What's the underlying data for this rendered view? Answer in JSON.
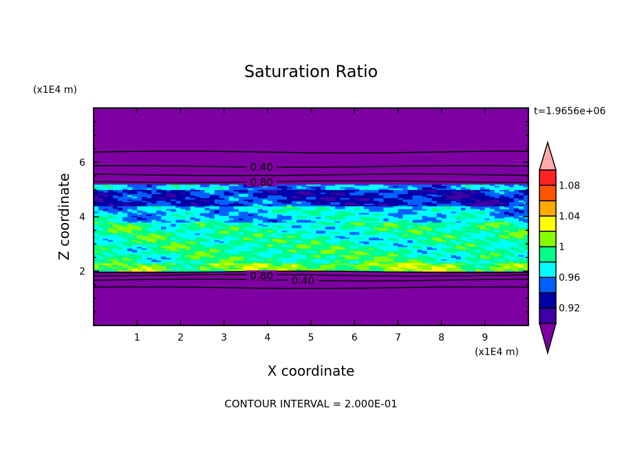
{
  "chart_data": {
    "type": "heatmap",
    "subtype": "filled-contour",
    "title": "Saturation Ratio",
    "xlabel": "X coordinate",
    "ylabel": "Z coordinate",
    "x_units": "(x1E4 m)",
    "y_units": "(x1E4 m)",
    "xlim": [
      0,
      10
    ],
    "ylim": [
      0,
      8
    ],
    "x_ticks": [
      "1",
      "2",
      "3",
      "4",
      "5",
      "6",
      "7",
      "8",
      "9"
    ],
    "y_ticks": [
      "2",
      "4",
      "6"
    ],
    "time_label": "t=1.9656e+06",
    "footer": "CONTOUR INTERVAL = 2.000E-01",
    "colorbar": {
      "levels": [
        0.9,
        0.92,
        0.94,
        0.96,
        0.98,
        1.0,
        1.02,
        1.04,
        1.06,
        1.08,
        1.1
      ],
      "tick_labels": [
        {
          "value": 0.92,
          "label": "0.92"
        },
        {
          "value": 0.96,
          "label": "0.96"
        },
        {
          "value": 1.0,
          "label": "1"
        },
        {
          "value": 1.04,
          "label": "1.04"
        },
        {
          "value": 1.08,
          "label": "1.08"
        }
      ],
      "colors": [
        "#3c00a4",
        "#0000a8",
        "#0060ff",
        "#00ffff",
        "#00ff88",
        "#88ff00",
        "#ffff00",
        "#ffaa00",
        "#ff5500",
        "#ff2222"
      ],
      "under_color": "#7e00a2",
      "over_color": "#ffaaaa"
    },
    "field_description_layers": [
      {
        "z": [
          0.0,
          2.0
        ],
        "value": 0.5
      },
      {
        "z": [
          2.0,
          2.3
        ],
        "value": 1.005
      },
      {
        "z": [
          2.3,
          3.8
        ],
        "value": 0.985
      },
      {
        "z": [
          3.8,
          4.4
        ],
        "value": 0.965
      },
      {
        "z": [
          4.4,
          5.0
        ],
        "value": 0.935
      },
      {
        "z": [
          5.0,
          5.2
        ],
        "value": 0.96
      },
      {
        "z": [
          5.2,
          8.0
        ],
        "value": 0.5
      }
    ],
    "contour_lines": [
      {
        "z": 6.38,
        "label": ""
      },
      {
        "z": 5.85,
        "label": "0.40",
        "label_x": 3.5
      },
      {
        "z": 5.54,
        "label": ""
      },
      {
        "z": 5.29,
        "label": "0.80",
        "label_x": 3.5
      },
      {
        "z": 1.97,
        "label": ""
      },
      {
        "z": 1.85,
        "label": "0.80",
        "label_x": 3.5
      },
      {
        "z": 1.67,
        "label": "0.40",
        "label_x": 3.5
      },
      {
        "z": 1.39,
        "label": ""
      }
    ]
  }
}
